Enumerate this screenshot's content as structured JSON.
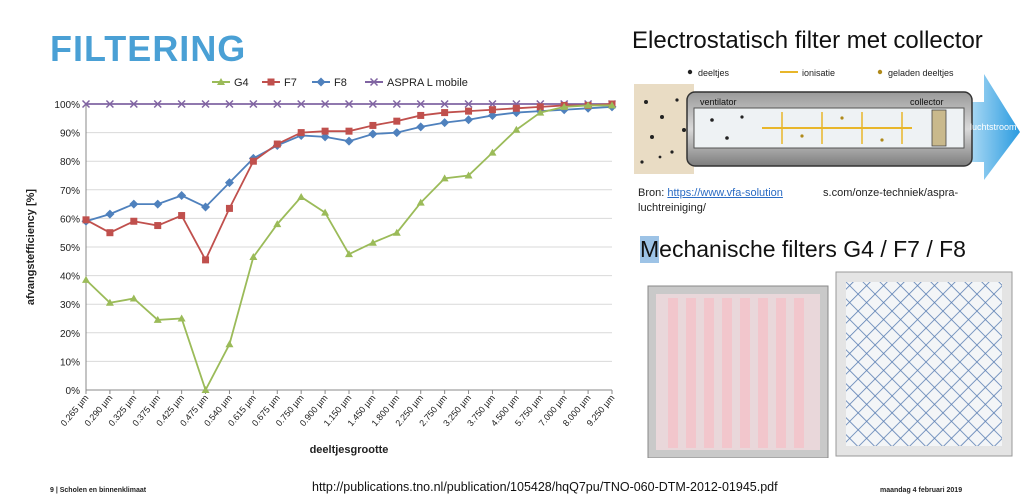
{
  "slide": {
    "title": "FILTERING",
    "footer_left": "9 | Scholen en binnenklimaat",
    "footer_url": "http://publications.tno.nl/publication/105428/hqQ7pu/TNO-060-DTM-2012-01945.pdf",
    "footer_date": "maandag 4 februari 2019"
  },
  "electrostatic": {
    "title": "Electrostatisch filter met collector",
    "legend_particles": "deeltjes",
    "legend_ionisation": "ionisatie",
    "legend_charged": "geladen deeltjes",
    "label_fan": "ventilator",
    "label_collector": "collector",
    "label_airflow": "luchtstroom",
    "source_prefix": "Bron:",
    "source_link": "https://www.vfa-solution",
    "source_rest": "s.com/onze-techniek/aspra-",
    "source_line2": "luchtreiniging/"
  },
  "mechanical": {
    "title_first": "M",
    "title_rest": "echanische filters G4 / F7 / F8"
  },
  "colors": {
    "title_blue": "#4aa0d5",
    "g4": "#9bbb59",
    "f7": "#c0504d",
    "f8": "#4f81bd",
    "aspra": "#8064a2"
  },
  "chart_data": {
    "type": "line",
    "xlabel": "deeltjesgrootte",
    "ylabel": "afvangstefficiency [%]",
    "ylim": [
      0,
      100
    ],
    "yticks": [
      "0%",
      "10%",
      "20%",
      "30%",
      "40%",
      "50%",
      "60%",
      "70%",
      "80%",
      "90%",
      "100%"
    ],
    "legend_position": "top",
    "grid": true,
    "categories": [
      "0.265 µm",
      "0.290 µm",
      "0.325 µm",
      "0.375 µm",
      "0.425 µm",
      "0.475 µm",
      "0.540 µm",
      "0.615 µm",
      "0.675 µm",
      "0.750 µm",
      "0.900 µm",
      "1.150 µm",
      "1.450 µm",
      "1.800 µm",
      "2.250 µm",
      "2.750 µm",
      "3.250 µm",
      "3.750 µm",
      "4.500 µm",
      "5.750 µm",
      "7.000 µm",
      "8.000 µm",
      "9.250 µm"
    ],
    "series": [
      {
        "name": "G4",
        "color": "#9bbb59",
        "marker": "triangle",
        "values": [
          38.5,
          30.5,
          32,
          24.5,
          25,
          0,
          16,
          46.5,
          58,
          67.5,
          62,
          47.5,
          51.5,
          55,
          65.5,
          74,
          75,
          83,
          91,
          97,
          99,
          99.5,
          99.5
        ]
      },
      {
        "name": "F7",
        "color": "#c0504d",
        "marker": "square",
        "values": [
          59.5,
          55,
          59,
          57.5,
          61,
          45.5,
          63.5,
          80,
          86,
          90,
          90.5,
          90.5,
          92.5,
          94,
          96,
          97,
          97.5,
          98,
          98.5,
          99,
          99.5,
          99.5,
          100
        ]
      },
      {
        "name": "F8",
        "color": "#4f81bd",
        "marker": "diamond",
        "values": [
          59,
          61.5,
          65,
          65,
          68,
          64,
          72.5,
          81,
          85.5,
          89,
          88.5,
          87,
          89.5,
          90,
          92,
          93.5,
          94.5,
          96,
          97,
          97.5,
          98,
          98.5,
          99
        ]
      },
      {
        "name": "ASPRA L mobile",
        "color": "#8064a2",
        "marker": "x",
        "values": [
          100,
          100,
          100,
          100,
          100,
          100,
          100,
          100,
          100,
          100,
          100,
          100,
          100,
          100,
          100,
          100,
          100,
          100,
          100,
          100,
          100,
          100,
          100
        ]
      }
    ]
  }
}
